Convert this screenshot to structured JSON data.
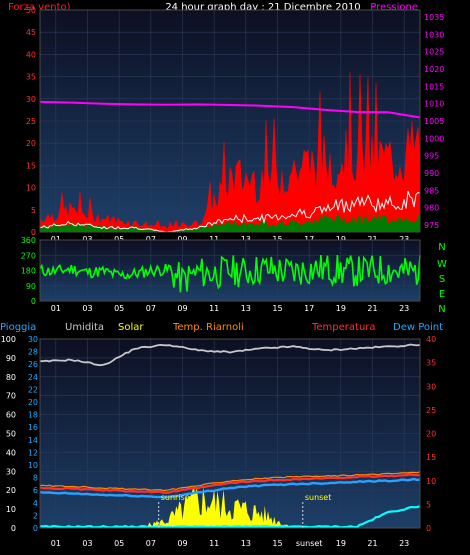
{
  "header": {
    "title": "24 hour graph day : 21 Dicembre 2010",
    "left_label": "Forza vento)",
    "right_label": "Pressione"
  },
  "legend": {
    "pioggia": "Pioggia",
    "umidita": "Umidita",
    "solar": "Solar",
    "temp_riarnoli": "Temp. Riarnoli",
    "temperatura": "Temperatura",
    "dew_point": "Dew Point"
  },
  "compass": [
    "N",
    "W",
    "S",
    "E",
    "N"
  ],
  "colors": {
    "wind": "#ff0000",
    "gust": "#ffffff",
    "wind_green": "#007a00",
    "pressure": "#ff00ff",
    "direction": "#00ff00",
    "humidity": "#c8c8c8",
    "solar": "#ffff00",
    "temp_riarnoli": "#ff8c00",
    "temperature": "#ff3030",
    "dew_point": "#2aa0ff",
    "rain": "#00ffff"
  },
  "chart_data": [
    {
      "type": "area",
      "title": "24 hour graph day : 21 Dicembre 2010",
      "x_ticks": [
        "01",
        "03",
        "05",
        "07",
        "09",
        "11",
        "13",
        "15",
        "17",
        "19",
        "21",
        "23"
      ],
      "y_left_label": "Forza vento)",
      "y_left_ticks": [
        0,
        5,
        10,
        15,
        20,
        25,
        30,
        35,
        40,
        45,
        50
      ],
      "y_left_range": [
        0,
        50
      ],
      "y_right_label": "Pressione",
      "y_right_ticks": [
        975,
        980,
        985,
        990,
        995,
        1000,
        1005,
        1010,
        1015,
        1020,
        1025,
        1030,
        1035
      ],
      "y_right_range": [
        973,
        1037
      ],
      "grid": true,
      "x": [
        0,
        2,
        4,
        6,
        8,
        10,
        12,
        14,
        16,
        18,
        20,
        22,
        24
      ],
      "series": [
        {
          "name": "Pressione",
          "axis": "right",
          "values": [
            1010.5,
            1010.3,
            1010.0,
            1009.8,
            1009.7,
            1009.8,
            1009.6,
            1009.4,
            1009.0,
            1008.2,
            1007.6,
            1007.5,
            1006.0
          ]
        },
        {
          "name": "Forza vento)",
          "axis": "left",
          "values": [
            3,
            5,
            3,
            2,
            1,
            2,
            12,
            12,
            14,
            16,
            18,
            16,
            19
          ]
        },
        {
          "name": "gust",
          "axis": "left",
          "values": [
            1,
            2,
            1,
            1,
            0,
            1,
            3,
            3,
            4,
            5,
            7,
            6,
            8
          ]
        },
        {
          "name": "wind-green",
          "axis": "left",
          "values": [
            1,
            2,
            1,
            1,
            0,
            1,
            2,
            2,
            2,
            3,
            3,
            3,
            3
          ]
        }
      ]
    },
    {
      "type": "line",
      "x_ticks": [
        "01",
        "03",
        "05",
        "07",
        "09",
        "11",
        "13",
        "15",
        "17",
        "19",
        "21",
        "23"
      ],
      "y_ticks": [
        0,
        90,
        180,
        270,
        360
      ],
      "y_range": [
        0,
        360
      ],
      "right_labels": [
        "N",
        "W",
        "S",
        "E",
        "N"
      ],
      "grid": true,
      "x": [
        0,
        1,
        2,
        3,
        4,
        5,
        6,
        7,
        8,
        9,
        10,
        11,
        12,
        13,
        14,
        15,
        16,
        17,
        18,
        19,
        20,
        21,
        22,
        23,
        24
      ],
      "series": [
        {
          "name": "direction",
          "values": [
            180,
            175,
            190,
            170,
            175,
            150,
            160,
            180,
            185,
            120,
            170,
            160,
            180,
            170,
            190,
            180,
            170,
            185,
            190,
            180,
            175,
            180,
            185,
            170,
            180
          ]
        }
      ]
    },
    {
      "type": "area",
      "x_ticks": [
        "01",
        "03",
        "05",
        "07",
        "09",
        "11",
        "13",
        "15",
        "sunset",
        "19",
        "21",
        "23"
      ],
      "y_left_ticks": [
        0,
        10,
        20,
        30,
        40,
        50,
        60,
        70,
        80,
        90,
        100
      ],
      "y_left_range": [
        0,
        100
      ],
      "y_inner_ticks": [
        0,
        2,
        4,
        6,
        8,
        10,
        12,
        14,
        16,
        18,
        20,
        22,
        24,
        26,
        28,
        30
      ],
      "y_inner_range": [
        0,
        30
      ],
      "y_right_ticks": [
        0,
        5,
        10,
        15,
        20,
        25,
        30,
        35,
        40
      ],
      "y_right_range": [
        0,
        40
      ],
      "annotations": [
        "sunrise",
        "sunset"
      ],
      "grid": true,
      "x": [
        0,
        2,
        4,
        6,
        8,
        10,
        12,
        14,
        16,
        18,
        20,
        22,
        24
      ],
      "series": [
        {
          "name": "Umidita",
          "axis": "left",
          "values": [
            88,
            89,
            86,
            95,
            97,
            94,
            93,
            95,
            96,
            94,
            95,
            96,
            97
          ]
        },
        {
          "name": "Temperatura",
          "axis": "right",
          "values": [
            8.5,
            8.3,
            8.0,
            7.8,
            7.5,
            8.5,
            9.5,
            10.0,
            10.3,
            10.5,
            10.8,
            11.0,
            11.3
          ]
        },
        {
          "name": "Temp. Riarnoli",
          "axis": "right",
          "values": [
            9,
            8.8,
            8.5,
            8.2,
            8.0,
            9.0,
            10.0,
            10.5,
            10.8,
            11.0,
            11.2,
            11.5,
            11.8
          ]
        },
        {
          "name": "Dew Point",
          "axis": "right",
          "values": [
            7.5,
            7.3,
            7.0,
            6.8,
            6.5,
            7.5,
            8.5,
            9.0,
            9.3,
            9.5,
            9.8,
            10.0,
            10.3
          ]
        },
        {
          "name": "Solar",
          "axis": "inner",
          "values": [
            0,
            0,
            0,
            0,
            1,
            4,
            3,
            2,
            0,
            0,
            0,
            0,
            0
          ]
        },
        {
          "name": "Pioggia",
          "axis": "inner",
          "values": [
            0.2,
            0.2,
            0.2,
            0.2,
            0.2,
            0.2,
            0.2,
            0.2,
            0.2,
            0.2,
            0.2,
            2.5,
            3.5
          ]
        }
      ]
    }
  ]
}
